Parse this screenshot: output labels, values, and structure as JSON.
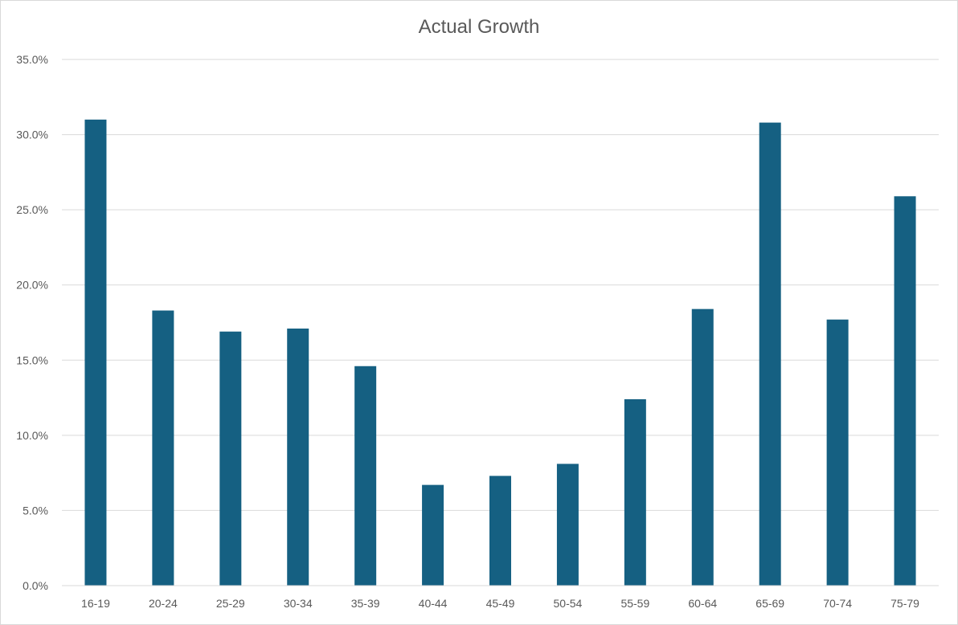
{
  "chart_data": {
    "type": "bar",
    "title": "Actual Growth",
    "xlabel": "",
    "ylabel": "",
    "categories": [
      "16-19",
      "20-24",
      "25-29",
      "30-34",
      "35-39",
      "40-44",
      "45-49",
      "50-54",
      "55-59",
      "60-64",
      "65-69",
      "70-74",
      "75-79"
    ],
    "values": [
      31.0,
      18.3,
      16.9,
      17.1,
      14.6,
      6.7,
      7.3,
      8.1,
      12.4,
      18.4,
      30.8,
      17.7,
      25.9
    ],
    "ylim": [
      0,
      35
    ],
    "yticks": [
      "0.0%",
      "5.0%",
      "10.0%",
      "15.0%",
      "20.0%",
      "25.0%",
      "30.0%",
      "35.0%"
    ],
    "ytick_values": [
      0,
      5,
      10,
      15,
      20,
      25,
      30,
      35
    ],
    "grid": true,
    "legend": "none",
    "bar_color": "#156082"
  }
}
